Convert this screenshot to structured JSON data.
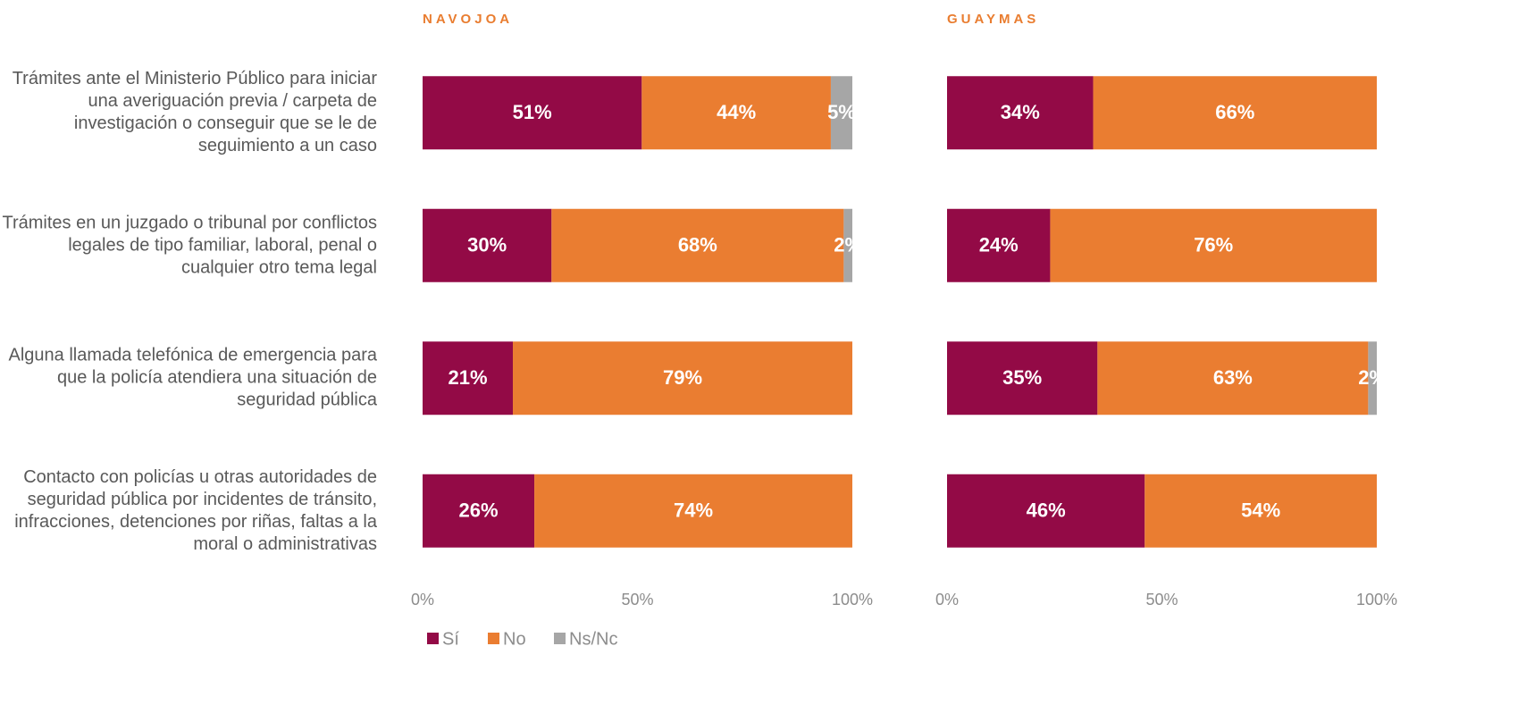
{
  "chart_data": [
    {
      "type": "bar",
      "orientation": "horizontal",
      "stacked": true,
      "title": "NAVOJOA",
      "categories": [
        "Trámites ante el Ministerio Público para iniciar una averiguación previa / carpeta de investigación o conseguir que se le de seguimiento a un caso",
        "Trámites en un juzgado o tribunal por conflictos legales de tipo familiar, laboral, penal o cualquier otro tema legal",
        "Alguna llamada telefónica de emergencia para que la policía atendiera una situación de seguridad pública",
        "Contacto con policías u otras autoridades de seguridad pública por incidentes de tránsito, infracciones, detenciones por riñas, faltas a la moral o administrativas"
      ],
      "series": [
        {
          "name": "Sí",
          "color": "#930a46",
          "values": [
            51,
            30,
            21,
            26
          ],
          "value_labels": [
            "51%",
            "30%",
            "21%",
            "26%"
          ]
        },
        {
          "name": "No",
          "color": "#ea7d31",
          "values": [
            44,
            68,
            79,
            74
          ],
          "value_labels": [
            "44%",
            "68%",
            "79%",
            "74%"
          ]
        },
        {
          "name": "Ns/Nc",
          "color": "#a6a6a6",
          "values": [
            5,
            2,
            null,
            null
          ],
          "value_labels": [
            "5%",
            "2%",
            null,
            null
          ]
        }
      ],
      "xlim": [
        0,
        100
      ],
      "xticks": [
        {
          "value": 0,
          "label": "0%"
        },
        {
          "value": 50,
          "label": "50%"
        },
        {
          "value": 100,
          "label": "100%"
        }
      ],
      "legend": "bottom-left"
    },
    {
      "type": "bar",
      "orientation": "horizontal",
      "stacked": true,
      "title": "GUAYMAS",
      "series": [
        {
          "color": "#930a46",
          "values": [
            34,
            24,
            35,
            46
          ],
          "value_labels": [
            "34%",
            "24%",
            "35%",
            "46%"
          ]
        },
        {
          "color": "#ea7d31",
          "values": [
            66,
            76,
            63,
            54
          ],
          "value_labels": [
            "66%",
            "76%",
            "63%",
            "54%"
          ]
        },
        {
          "color": "#a6a6a6",
          "values": [
            null,
            null,
            2,
            null
          ],
          "value_labels": [
            null,
            null,
            "2%",
            null
          ]
        }
      ],
      "xlim": [
        0,
        100
      ],
      "xticks": [
        {
          "value": 0,
          "label": "0%"
        },
        {
          "value": 50,
          "label": "50%"
        },
        {
          "value": 100,
          "label": "100%"
        }
      ]
    }
  ]
}
